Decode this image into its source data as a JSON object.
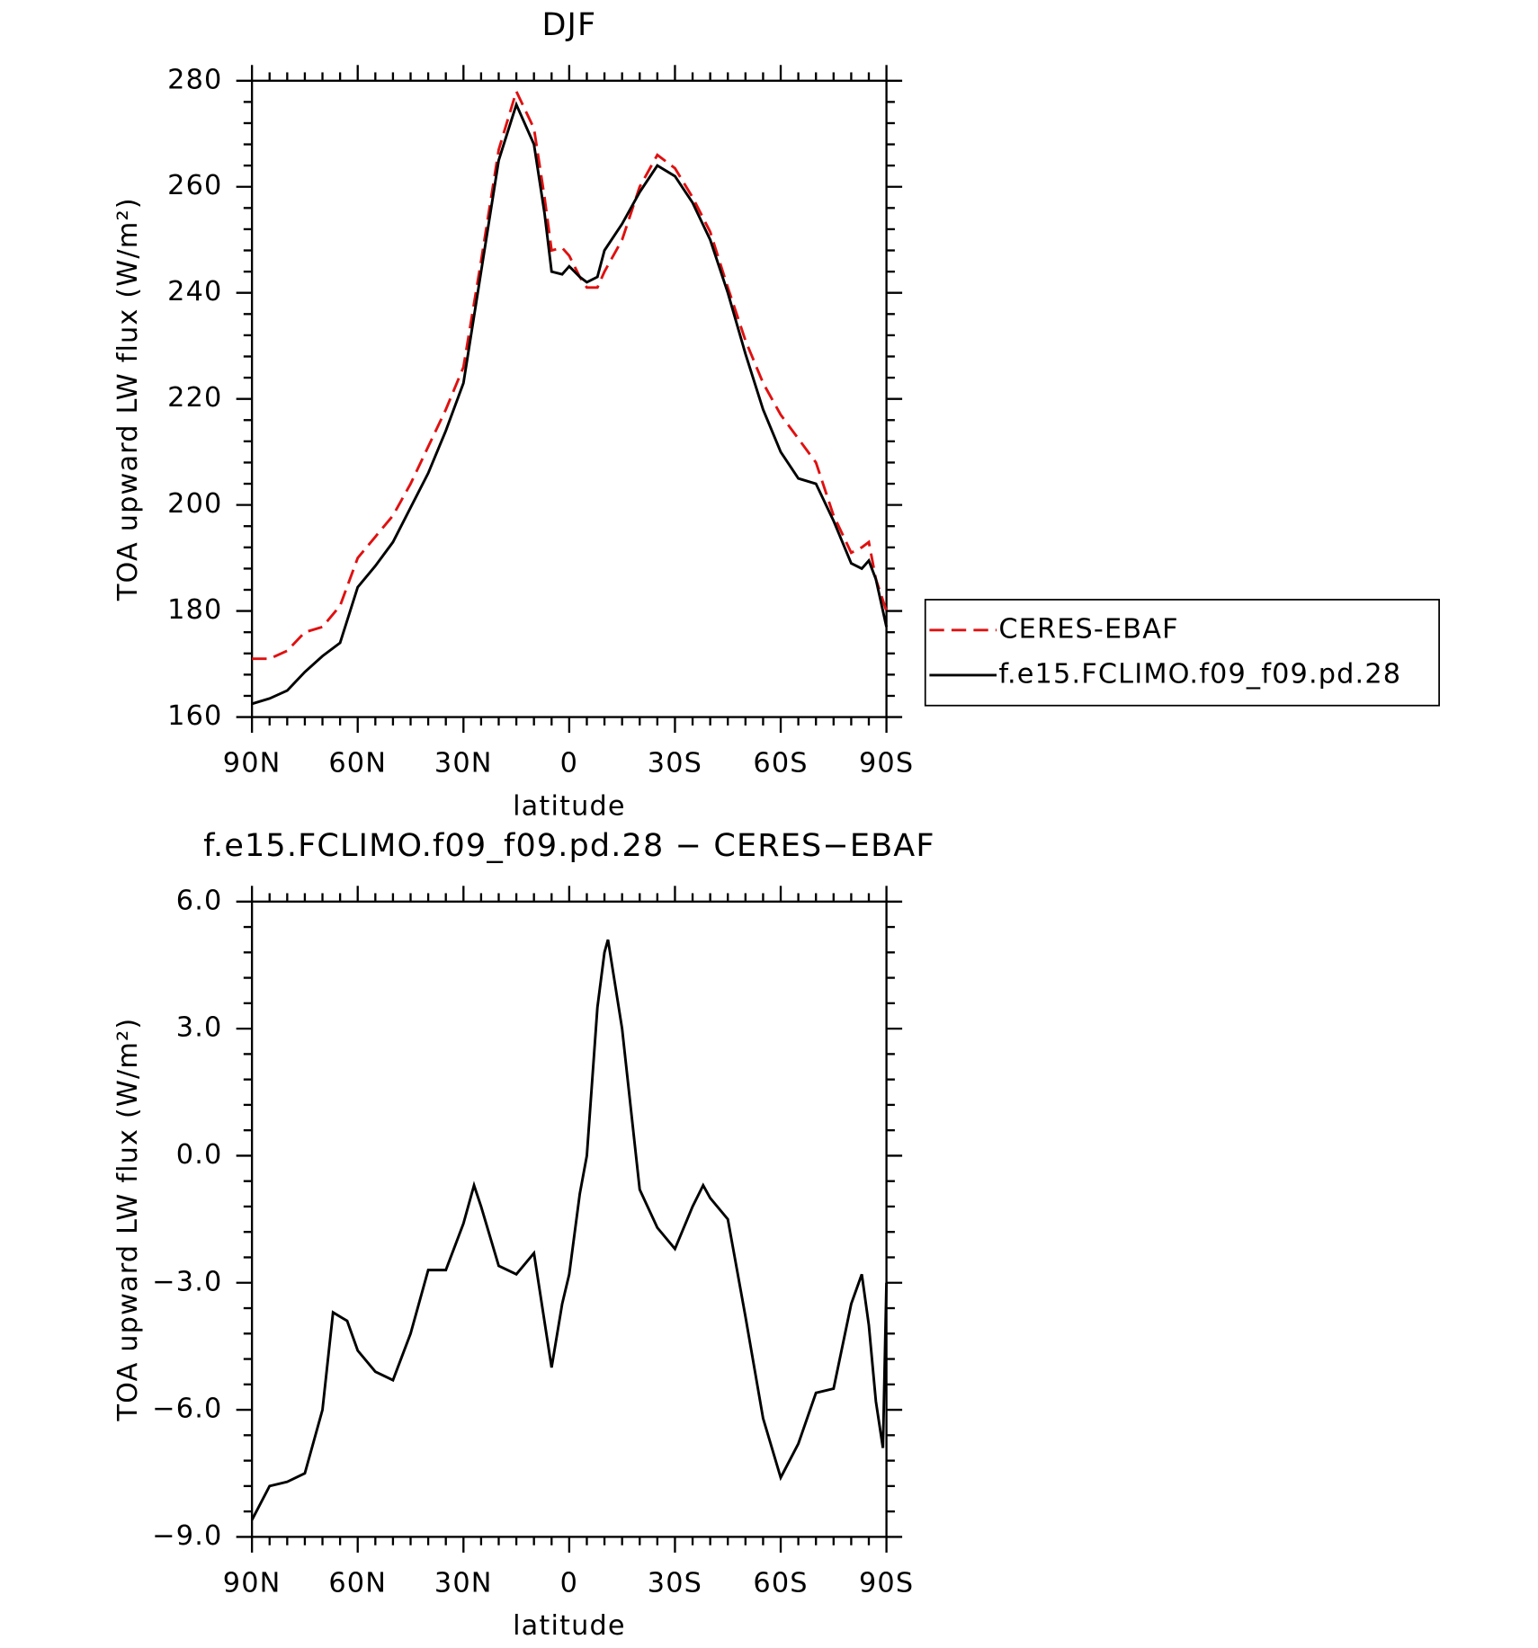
{
  "chart_data": [
    {
      "type": "line",
      "title": "DJF",
      "xlabel": "latitude",
      "ylabel": "TOA upward LW flux (W/m²)",
      "x": [
        90,
        85,
        80,
        75,
        70,
        65,
        60,
        55,
        50,
        45,
        40,
        35,
        30,
        25,
        20,
        15,
        10,
        7,
        5,
        2,
        0,
        -3,
        -5,
        -8,
        -10,
        -15,
        -20,
        -25,
        -30,
        -35,
        -40,
        -45,
        -50,
        -55,
        -60,
        -65,
        -70,
        -75,
        -80,
        -83,
        -85,
        -87,
        -90
      ],
      "xlim": [
        90,
        -90
      ],
      "xticks": [
        {
          "value": 90,
          "label": "90N"
        },
        {
          "value": 60,
          "label": "60N"
        },
        {
          "value": 30,
          "label": "30N"
        },
        0,
        {
          "value": -30,
          "label": "30S"
        },
        {
          "value": -60,
          "label": "60S"
        },
        {
          "value": -90,
          "label": "90S"
        }
      ],
      "ylim": [
        160,
        280
      ],
      "yticks": [
        160,
        180,
        200,
        220,
        240,
        260,
        280
      ],
      "legend": "right",
      "series": [
        {
          "name": "CERES-EBAF",
          "color": "#e01010",
          "dash": true,
          "values": [
            171,
            171,
            172.5,
            176,
            177,
            181,
            190,
            194,
            198,
            204,
            211,
            218,
            226,
            246,
            267,
            278,
            271,
            258,
            248,
            248.5,
            247,
            243,
            241,
            241,
            244,
            250,
            260,
            266,
            263.5,
            258,
            251.5,
            241,
            231,
            223,
            217,
            212.5,
            208,
            198,
            191,
            192,
            193,
            186,
            180
          ]
        },
        {
          "name": "f.e15.FCLIMO.f09_f09.pd.28",
          "color": "#000000",
          "dash": false,
          "values": [
            162.5,
            163.5,
            165,
            168.5,
            171.5,
            174,
            184.5,
            188.5,
            193,
            199.5,
            206,
            214,
            223,
            244,
            265,
            275.5,
            268,
            255,
            244,
            243.5,
            245,
            243,
            242,
            243,
            248,
            253,
            259,
            264,
            262,
            257,
            250,
            240,
            228.5,
            218,
            210,
            205,
            204,
            197,
            189,
            188,
            189.5,
            186,
            177
          ]
        }
      ]
    },
    {
      "type": "line",
      "title": "f.e15.FCLIMO.f09_f09.pd.28 − CERES−EBAF",
      "xlabel": "latitude",
      "ylabel": "TOA upward LW flux (W/m²)",
      "x": [
        90,
        85,
        80,
        75,
        70,
        67,
        63,
        60,
        55,
        50,
        45,
        40,
        35,
        30,
        27,
        25,
        20,
        15,
        10,
        5,
        2,
        0,
        -3,
        -5,
        -8,
        -10,
        -11,
        -15,
        -20,
        -25,
        -30,
        -35,
        -38,
        -40,
        -45,
        -50,
        -55,
        -60,
        -65,
        -70,
        -75,
        -80,
        -83,
        -85,
        -87,
        -89,
        -90
      ],
      "xlim": [
        90,
        -90
      ],
      "xticks": [
        {
          "value": 90,
          "label": "90N"
        },
        {
          "value": 60,
          "label": "60N"
        },
        {
          "value": 30,
          "label": "30N"
        },
        0,
        {
          "value": -30,
          "label": "30S"
        },
        {
          "value": -60,
          "label": "60S"
        },
        {
          "value": -90,
          "label": "90S"
        }
      ],
      "ylim": [
        -9,
        6
      ],
      "yticks": [
        {
          "value": -9,
          "label": "−9.0"
        },
        {
          "value": -6,
          "label": "−6.0"
        },
        {
          "value": -3,
          "label": "−3.0"
        },
        {
          "value": 0,
          "label": "0.0"
        },
        {
          "value": 3,
          "label": "3.0"
        },
        {
          "value": 6,
          "label": "6.0"
        }
      ],
      "series": [
        {
          "color": "#000000",
          "dash": false,
          "values": [
            -8.6,
            -7.8,
            -7.7,
            -7.5,
            -6.0,
            -3.7,
            -3.9,
            -4.6,
            -5.1,
            -5.3,
            -4.2,
            -2.7,
            -2.7,
            -1.6,
            -0.7,
            -1.2,
            -2.6,
            -2.8,
            -2.3,
            -5.0,
            -3.5,
            -2.8,
            -0.9,
            0.0,
            3.5,
            4.8,
            5.1,
            3.0,
            -0.8,
            -1.7,
            -2.2,
            -1.2,
            -0.7,
            -1.0,
            -1.5,
            -3.8,
            -6.2,
            -7.6,
            -6.8,
            -5.6,
            -5.5,
            -3.5,
            -2.8,
            -4.0,
            -5.8,
            -6.9,
            -3.0
          ]
        }
      ]
    }
  ]
}
